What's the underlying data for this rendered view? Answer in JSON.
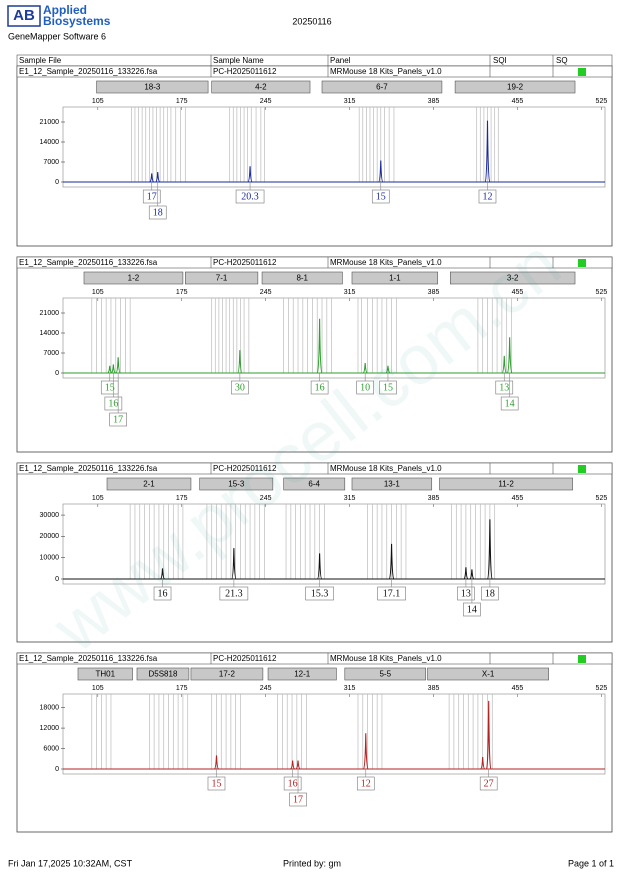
{
  "header": {
    "logo_mark": "AB",
    "logo_line1": "Applied",
    "logo_line2": "Biosystems",
    "software": "GeneMapper Software 6",
    "run": "20250116"
  },
  "columns": [
    "Sample File",
    "Sample Name",
    "Panel",
    "SQI",
    "SQ"
  ],
  "watermark": "www.procell.com.cn",
  "footer": {
    "date": "Fri Jan 17,2025 10:32AM, CST",
    "printed_by": "Printed by: gm",
    "page": "Page 1 of 1"
  },
  "chart_data": [
    {
      "type": "electropherogram",
      "sample_file": "E1_12_Sample_20250116_133226.fsa",
      "sample_name": "PC-H2025011612",
      "panel": "MRMouse 18 Kits_Panels_v1.0",
      "sq_color": "#22cc22",
      "color": "#1a2a9c",
      "markers": [
        {
          "name": "18-3",
          "start": 104,
          "end": 197
        },
        {
          "name": "4-2",
          "start": 200,
          "end": 282
        },
        {
          "name": "6-7",
          "start": 292,
          "end": 392
        },
        {
          "name": "19-2",
          "start": 403,
          "end": 503
        }
      ],
      "xlim": [
        76,
        528
      ],
      "xticks": [
        105,
        175,
        245,
        315,
        385,
        455,
        525
      ],
      "ylim": [
        0,
        26250
      ],
      "yticks": [
        0,
        7000,
        14000,
        21000
      ],
      "allele_bins": [
        133,
        136,
        139,
        142,
        145,
        148,
        151,
        154,
        157,
        160,
        163,
        166,
        170,
        174,
        178,
        215,
        218,
        221,
        224,
        227,
        230,
        233,
        237,
        241,
        244,
        323,
        326,
        329,
        332,
        335,
        338,
        341,
        344,
        348,
        352,
        421,
        424,
        427,
        430,
        433,
        436,
        439
      ],
      "x": [
        150,
        155,
        232,
        341,
        430
      ],
      "values": [
        3000,
        3500,
        5500,
        7500,
        21500
      ],
      "alleles": [
        "17",
        "18",
        "20.3",
        "15",
        "12"
      ]
    },
    {
      "type": "electropherogram",
      "sample_file": "E1_12_Sample_20250116_133226.fsa",
      "sample_name": "PC-H2025011612",
      "panel": "MRMouse 18 Kits_Panels_v1.0",
      "sq_color": "#22cc22",
      "color": "#2e9e2e",
      "markers": [
        {
          "name": "1-2",
          "start": 93.5,
          "end": 176
        },
        {
          "name": "7-1",
          "start": 178,
          "end": 238.5
        },
        {
          "name": "8-1",
          "start": 242,
          "end": 309
        },
        {
          "name": "1-1",
          "start": 317,
          "end": 388.5
        },
        {
          "name": "3-2",
          "start": 399,
          "end": 503
        }
      ],
      "xlim": [
        76,
        528
      ],
      "xticks": [
        105,
        175,
        245,
        315,
        385,
        455,
        525
      ],
      "ylim": [
        0,
        26250
      ],
      "yticks": [
        0,
        7000,
        14000,
        21000
      ],
      "allele_bins": [
        100,
        104,
        108,
        112,
        116,
        120,
        124,
        128,
        132,
        200,
        203,
        206,
        209,
        212,
        215,
        218,
        221,
        224,
        227,
        231,
        260,
        264,
        268,
        272,
        276,
        280,
        284,
        288,
        292,
        296,
        300,
        322,
        325,
        330,
        334,
        338,
        342,
        346,
        350,
        354,
        422,
        426,
        430,
        434,
        438,
        442,
        446,
        450
      ],
      "x": [
        115,
        118,
        122,
        223.5,
        290,
        328,
        347,
        444,
        448.5
      ],
      "values": [
        2500,
        3000,
        5500,
        8000,
        19000,
        3500,
        2500,
        6000,
        12500
      ],
      "alleles": [
        "15",
        "16",
        "17",
        "30",
        "16",
        "10",
        "15",
        "13",
        "14"
      ]
    },
    {
      "type": "electropherogram",
      "sample_file": "E1_12_Sample_20250116_133226.fsa",
      "sample_name": "PC-H2025011612",
      "panel": "MRMouse 18 Kits_Panels_v1.0",
      "sq_color": "#22cc22",
      "color": "#111111",
      "markers": [
        {
          "name": "2-1",
          "start": 112.7,
          "end": 182.7
        },
        {
          "name": "15-3",
          "start": 190,
          "end": 251
        },
        {
          "name": "6-4",
          "start": 260,
          "end": 311
        },
        {
          "name": "13-1",
          "start": 317,
          "end": 383.5
        },
        {
          "name": "11-2",
          "start": 390,
          "end": 501
        }
      ],
      "xlim": [
        76,
        528
      ],
      "xticks": [
        105,
        175,
        245,
        315,
        385,
        455,
        525
      ],
      "ylim": [
        0,
        35200
      ],
      "yticks": [
        0,
        10000,
        20000,
        30000
      ],
      "allele_bins": [
        132,
        136,
        140,
        144,
        148,
        152,
        156,
        160,
        164,
        168,
        172,
        176,
        196,
        200,
        204,
        208,
        212,
        216,
        220,
        224,
        228,
        232,
        236,
        240,
        244,
        262,
        266,
        270,
        274,
        278,
        282,
        286,
        290,
        294,
        330,
        334,
        338,
        342,
        346,
        350,
        354,
        358,
        362,
        400,
        404,
        408,
        412,
        416,
        420,
        424,
        428,
        432,
        436
      ],
      "x": [
        159,
        218.5,
        290,
        350,
        412,
        417,
        432
      ],
      "values": [
        5000,
        14500,
        12000,
        16500,
        5500,
        4500,
        28000
      ],
      "alleles": [
        "16",
        "21.3",
        "15.3",
        "17.1",
        "13",
        "14",
        "18"
      ]
    },
    {
      "type": "electropherogram",
      "sample_file": "E1_12_Sample_20250116_133226.fsa",
      "sample_name": "PC-H2025011612",
      "panel": "MRMouse 18 Kits_Panels_v1.0",
      "sq_color": "#22cc22",
      "color": "#b22222",
      "markers": [
        {
          "name": "TH01",
          "start": 88.5,
          "end": 134
        },
        {
          "name": "D5S818",
          "start": 137.7,
          "end": 181
        },
        {
          "name": "17-2",
          "start": 182.7,
          "end": 242.7
        },
        {
          "name": "12-1",
          "start": 247,
          "end": 304
        },
        {
          "name": "5-5",
          "start": 311,
          "end": 378.5
        },
        {
          "name": "X-1",
          "start": 380,
          "end": 481
        }
      ],
      "xlim": [
        76,
        528
      ],
      "xticks": [
        105,
        175,
        245,
        315,
        385,
        455,
        525
      ],
      "ylim": [
        0,
        22000
      ],
      "yticks": [
        0,
        6000,
        12000,
        18000
      ],
      "allele_bins": [
        100,
        104,
        108,
        112,
        116,
        148,
        152,
        156,
        160,
        164,
        168,
        172,
        176,
        180,
        200,
        204,
        208,
        212,
        216,
        220,
        224,
        255,
        259,
        263,
        267,
        271,
        275,
        279,
        322,
        326,
        330,
        334,
        338,
        342,
        398,
        402,
        406,
        410,
        414,
        418,
        422,
        426,
        430,
        434
      ],
      "x": [
        204,
        267.5,
        272,
        328.5,
        426,
        431
      ],
      "values": [
        4000,
        2500,
        2500,
        10500,
        3500,
        20000
      ],
      "alleles": [
        "15",
        "16",
        "17",
        "12",
        null,
        "27"
      ]
    }
  ]
}
